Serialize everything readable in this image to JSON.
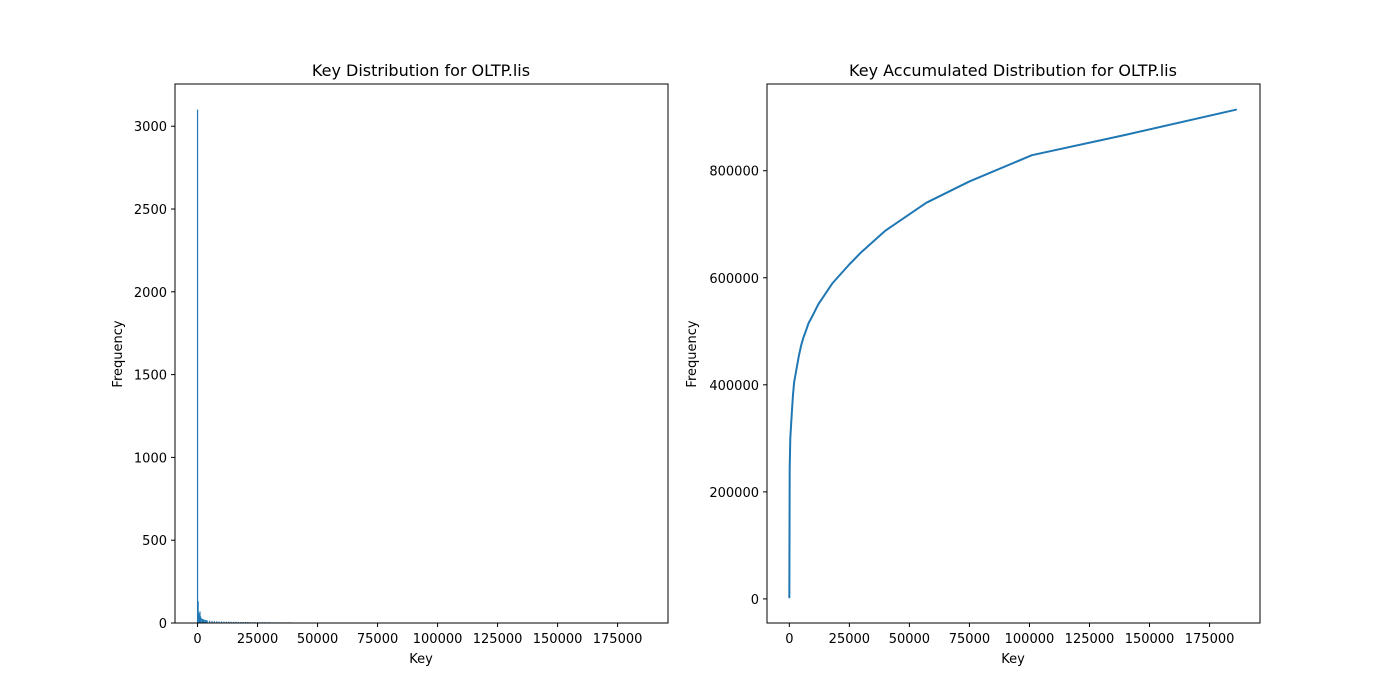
{
  "figure": {
    "background": "#ffffff",
    "line_color": "#1f77b4"
  },
  "chart_data": [
    {
      "type": "bar",
      "title": "Key Distribution for OLTP.lis",
      "xlabel": "Key",
      "ylabel": "Frequency",
      "xlim": [
        -9400,
        196000
      ],
      "ylim": [
        0,
        3255
      ],
      "xticks": [
        0,
        25000,
        50000,
        75000,
        100000,
        125000,
        150000,
        175000
      ],
      "xtick_labels": [
        "0",
        "25000",
        "50000",
        "75000",
        "100000",
        "125000",
        "150000",
        "175000"
      ],
      "yticks": [
        0,
        500,
        1000,
        1500,
        2000,
        2500,
        3000
      ],
      "ytick_labels": [
        "0",
        "500",
        "1000",
        "1500",
        "2000",
        "2500",
        "3000"
      ],
      "color": "#1f77b4",
      "x": [
        0,
        250,
        500,
        750,
        1000,
        1250,
        1500,
        2000,
        2500,
        3000,
        3500,
        4000,
        5000,
        6000,
        7000,
        8000,
        9000,
        10000,
        11000,
        12000,
        13000,
        14000,
        15000,
        16000,
        17000,
        18000,
        19000,
        20000,
        21000,
        22000,
        23000,
        24000,
        25000,
        26000,
        27000,
        28000,
        29000,
        30000,
        31000,
        32000,
        33000,
        34000,
        35000,
        36000,
        37000,
        38000,
        39000,
        40000,
        41000,
        42000,
        43000,
        44000,
        45000,
        46000,
        48000,
        50000,
        52000,
        55000,
        58000,
        60000,
        63000,
        66000,
        70000,
        75000,
        80000,
        90000,
        100000,
        110000,
        120000,
        135000,
        150000,
        165000,
        180000,
        186000
      ],
      "values": [
        3100,
        130,
        60,
        45,
        70,
        40,
        30,
        25,
        22,
        20,
        18,
        16,
        14,
        12,
        11,
        10,
        9,
        9,
        8,
        8,
        8,
        7,
        7,
        7,
        6,
        6,
        6,
        6,
        6,
        5,
        5,
        5,
        5,
        5,
        5,
        5,
        5,
        5,
        4,
        4,
        4,
        4,
        4,
        4,
        4,
        4,
        4,
        3,
        3,
        3,
        3,
        3,
        3,
        3,
        2,
        2,
        2,
        2,
        2,
        2,
        2,
        2,
        1,
        1,
        1,
        1,
        1,
        1,
        1,
        1,
        1,
        1,
        1,
        1
      ]
    },
    {
      "type": "line",
      "title": "Key Accumulated Distribution for OLTP.lis",
      "xlabel": "Key",
      "ylabel": "Frequency",
      "xlim": [
        -9300,
        196000
      ],
      "ylim": [
        -45000,
        962000
      ],
      "xticks": [
        0,
        25000,
        50000,
        75000,
        100000,
        125000,
        150000,
        175000
      ],
      "xtick_labels": [
        "0",
        "25000",
        "50000",
        "75000",
        "100000",
        "125000",
        "150000",
        "175000"
      ],
      "yticks": [
        0,
        200000,
        400000,
        600000,
        800000
      ],
      "ytick_labels": [
        "0",
        "200000",
        "400000",
        "600000",
        "800000"
      ],
      "color": "#1f77b4",
      "x": [
        0,
        150,
        400,
        1000,
        1500,
        2000,
        3000,
        4000,
        5000,
        6000,
        7000,
        8000,
        10000,
        12000,
        15000,
        18000,
        20000,
        25000,
        30000,
        40000,
        57000,
        75000,
        101000,
        140000,
        186000
      ],
      "y": [
        3000,
        245000,
        300000,
        345000,
        380000,
        405000,
        430000,
        455000,
        475000,
        490000,
        502000,
        515000,
        532000,
        550000,
        570000,
        590000,
        600000,
        625000,
        648000,
        688000,
        740000,
        780000,
        829000,
        867000,
        914000
      ]
    }
  ]
}
